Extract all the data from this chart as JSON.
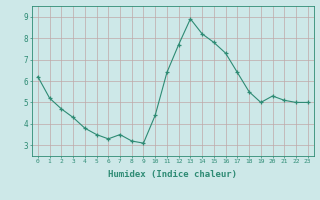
{
  "x": [
    0,
    1,
    2,
    3,
    4,
    5,
    6,
    7,
    8,
    9,
    10,
    11,
    12,
    13,
    14,
    15,
    16,
    17,
    18,
    19,
    20,
    21,
    22,
    23
  ],
  "y": [
    6.2,
    5.2,
    4.7,
    4.3,
    3.8,
    3.5,
    3.3,
    3.5,
    3.2,
    3.1,
    4.4,
    6.4,
    7.7,
    8.9,
    8.2,
    7.8,
    7.3,
    6.4,
    5.5,
    5.0,
    5.3,
    5.1,
    5.0,
    5.0
  ],
  "xlabel": "Humidex (Indice chaleur)",
  "ylim": [
    2.5,
    9.5
  ],
  "xlim": [
    -0.5,
    23.5
  ],
  "yticks": [
    3,
    4,
    5,
    6,
    7,
    8,
    9
  ],
  "xticks": [
    0,
    1,
    2,
    3,
    4,
    5,
    6,
    7,
    8,
    9,
    10,
    11,
    12,
    13,
    14,
    15,
    16,
    17,
    18,
    19,
    20,
    21,
    22,
    23
  ],
  "line_color": "#2e8b74",
  "marker_color": "#2e8b74",
  "bg_color": "#cde8e8",
  "grid_color": "#c0a8a8",
  "xlabel_color": "#2e8b74",
  "tick_color": "#2e8b74",
  "axis_color": "#2e8b74"
}
